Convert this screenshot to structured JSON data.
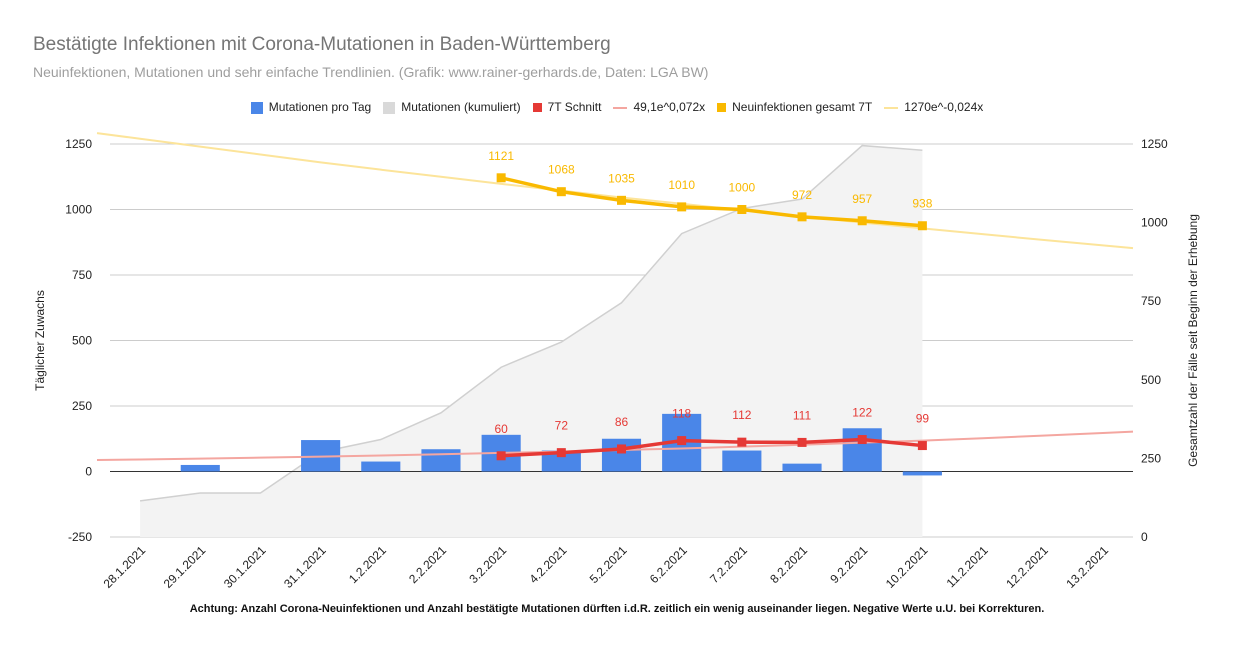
{
  "header": {
    "title": "Bestätigte Infektionen mit Corona-Mutationen in Baden-Württemberg",
    "subtitle": "Neuinfektionen, Mutationen und sehr einfache Trendlinien.  (Grafik: www.rainer-gerhards.de, Daten: LGA BW)"
  },
  "footnote": "Achtung: Anzahl Corona-Neuinfektionen und Anzahl bestätigte Mutationen dürften i.d.R. zeitlich ein wenig auseinander liegen. Negative Werte u.U. bei Korrekturen.",
  "legend": [
    {
      "label": "Mutationen pro Tag",
      "color": "#4a86e8",
      "kind": "box"
    },
    {
      "label": "Mutationen (kumuliert)",
      "color": "#d9d9d9",
      "kind": "box"
    },
    {
      "label": "7T Schnitt",
      "color": "#e53935",
      "kind": "sq"
    },
    {
      "label": "49,1e^0,072x",
      "color": "#f4a6a0",
      "kind": "line"
    },
    {
      "label": "Neuinfektionen gesamt 7T",
      "color": "#f9b900",
      "kind": "sq"
    },
    {
      "label": "1270e^-0,024x",
      "color": "#fce49a",
      "kind": "line"
    }
  ],
  "chart_data": {
    "type": "bar",
    "categories": [
      "28.1.2021",
      "29.1.2021",
      "30.1.2021",
      "31.1.2021",
      "1.2.2021",
      "2.2.2021",
      "3.2.2021",
      "4.2.2021",
      "5.2.2021",
      "6.2.2021",
      "7.2.2021",
      "8.2.2021",
      "9.2.2021",
      "10.2.2021",
      "11.2.2021",
      "12.2.2021",
      "13.2.2021"
    ],
    "ylabel": "Täglicher Zuwachs",
    "ylabel_right": "Gesamtzahl der Fälle seit Beginn der Erhebung",
    "ylim": [
      -250,
      1250
    ],
    "ylim_right": [
      0,
      1250
    ],
    "yticks": [
      "1250",
      "1000",
      "750",
      "500",
      "250",
      "0",
      "-250"
    ],
    "yticks_right": [
      "1250",
      "1000",
      "750",
      "500",
      "250",
      "0"
    ],
    "grid": true,
    "legend_position": "top",
    "series": [
      {
        "name": "Mutationen pro Tag",
        "type": "bar",
        "axis": "left",
        "color": "#4a86e8",
        "values": [
          null,
          25,
          null,
          120,
          38,
          85,
          140,
          80,
          125,
          220,
          80,
          30,
          165,
          -15,
          null,
          null,
          null
        ]
      },
      {
        "name": "Mutationen (kumuliert)",
        "type": "area",
        "axis": "right",
        "color": "#d9d9d9",
        "values": [
          115,
          140,
          140,
          270,
          310,
          395,
          540,
          620,
          745,
          965,
          1045,
          1075,
          1245,
          1230,
          null,
          null,
          null
        ]
      },
      {
        "name": "7T Schnitt",
        "type": "line",
        "axis": "left",
        "color": "#e53935",
        "values": [
          null,
          null,
          null,
          null,
          null,
          null,
          60,
          72,
          86,
          118,
          112,
          111,
          122,
          99,
          null,
          null,
          null
        ],
        "labels": [
          "",
          "",
          "",
          "",
          "",
          "",
          "60",
          "72",
          "86",
          "118",
          "112",
          "111",
          "122",
          "99",
          "",
          "",
          ""
        ]
      },
      {
        "name": "49,1e^0,072x",
        "type": "trendline",
        "axis": "left",
        "color": "#f4a6a0",
        "values": [
          46,
          49,
          53,
          57,
          61,
          66,
          71,
          76,
          82,
          88,
          95,
          102,
          110,
          118,
          127,
          137,
          147
        ]
      },
      {
        "name": "Neuinfektionen gesamt 7T",
        "type": "line",
        "axis": "left",
        "color": "#f9b900",
        "values": [
          null,
          null,
          null,
          null,
          null,
          null,
          1121,
          1068,
          1035,
          1010,
          1000,
          972,
          957,
          938,
          null,
          null,
          null
        ],
        "labels": [
          "",
          "",
          "",
          "",
          "",
          "",
          "1121",
          "1068",
          "1035",
          "1010",
          "1000",
          "972",
          "957",
          "938",
          "",
          "",
          ""
        ]
      },
      {
        "name": "1270e^-0,024x",
        "type": "trendline",
        "axis": "left",
        "color": "#fce49a",
        "values": [
          1270,
          1240,
          1210,
          1180,
          1152,
          1125,
          1098,
          1072,
          1046,
          1022,
          997,
          974,
          950,
          928,
          906,
          884,
          863
        ]
      }
    ]
  }
}
